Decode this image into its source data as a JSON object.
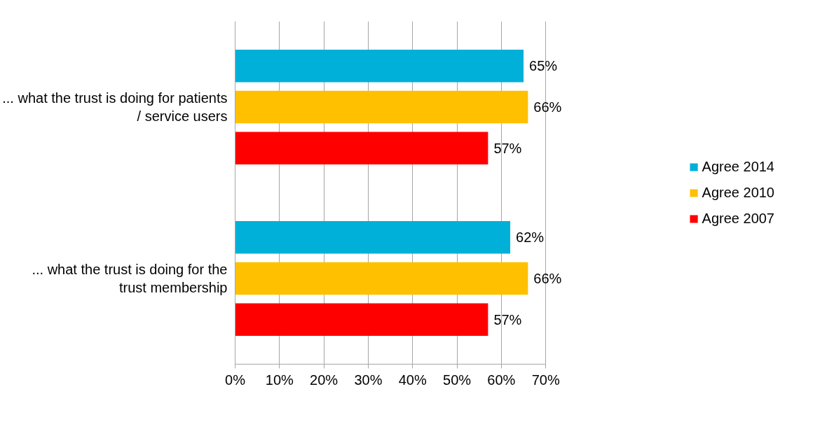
{
  "chart_data": {
    "type": "bar",
    "orientation": "horizontal",
    "categories": [
      "... what the trust is doing for patients / service users",
      "... what the trust is doing for the trust membership"
    ],
    "series": [
      {
        "name": "Agree 2014",
        "color": "#00b0d8",
        "values": [
          65,
          62
        ],
        "value_labels": [
          "65%",
          "62%"
        ]
      },
      {
        "name": "Agree 2010",
        "color": "#ffc000",
        "values": [
          66,
          66
        ],
        "value_labels": [
          "66%",
          "66%"
        ]
      },
      {
        "name": "Agree 2007",
        "color": "#ff0000",
        "values": [
          57,
          57
        ],
        "value_labels": [
          "57%",
          "57%"
        ]
      }
    ],
    "xlim": [
      0,
      70
    ],
    "xticks": [
      {
        "value": 0,
        "label": "0%"
      },
      {
        "value": 10,
        "label": "10%"
      },
      {
        "value": 20,
        "label": "20%"
      },
      {
        "value": 30,
        "label": "30%"
      },
      {
        "value": 40,
        "label": "40%"
      },
      {
        "value": 50,
        "label": "50%"
      },
      {
        "value": 60,
        "label": "60%"
      },
      {
        "value": 70,
        "label": "70%"
      }
    ],
    "grid": "x",
    "legend": "right"
  }
}
